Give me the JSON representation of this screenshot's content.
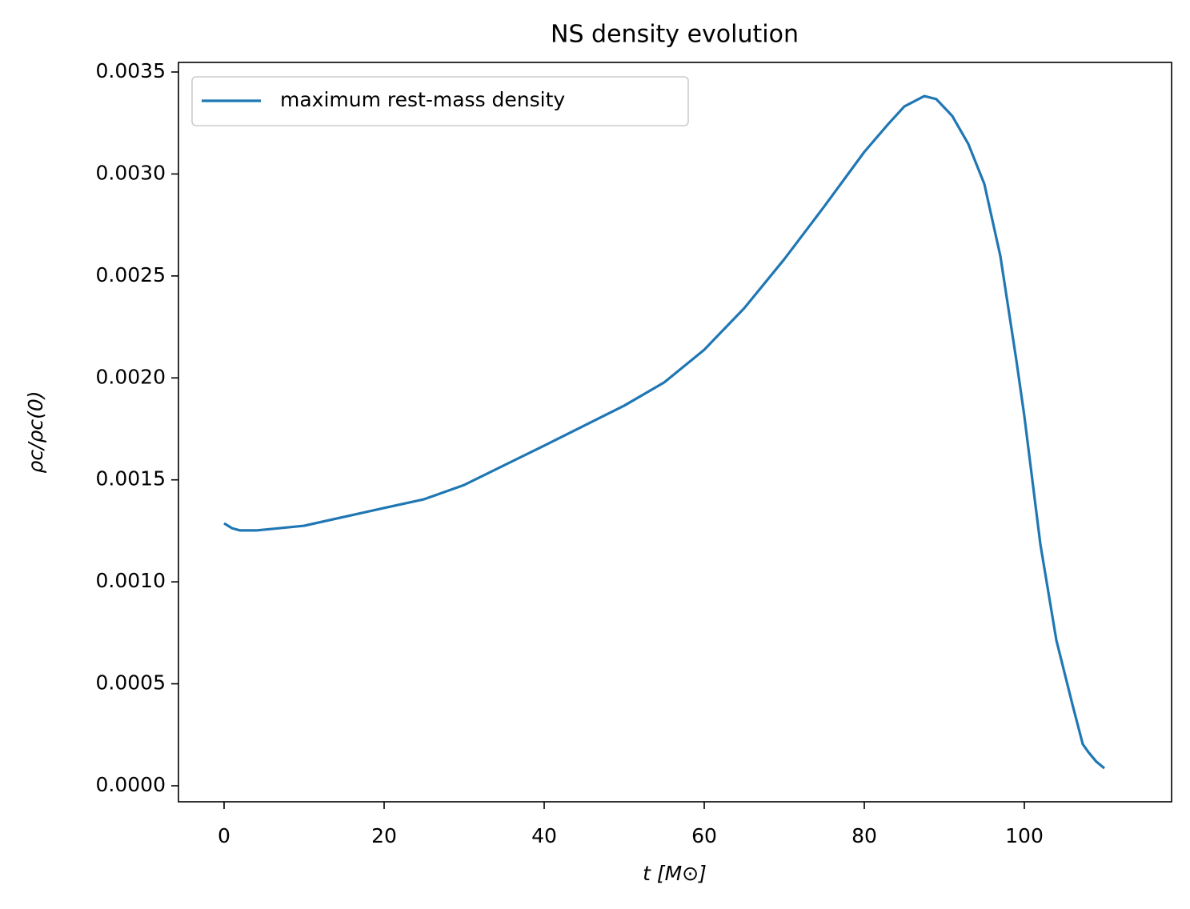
{
  "chart_data": {
    "type": "line",
    "title": "NS density evolution",
    "x_label": "t [M⊙]",
    "y_label": "ρc/ρc(0)",
    "x": [
      0,
      1,
      2,
      4,
      10,
      20,
      25,
      30,
      40,
      50,
      55,
      60,
      65,
      70,
      75,
      80,
      83,
      85,
      87.5,
      89,
      91,
      93,
      95,
      97,
      99,
      100,
      102,
      104,
      106,
      107.3,
      108,
      109,
      110
    ],
    "series": [
      {
        "name": "maximum rest-mass density",
        "color": "#1f77b4",
        "values": [
          0.001287,
          0.001263,
          0.001252,
          0.001252,
          0.001275,
          0.001362,
          0.001405,
          0.001475,
          0.001668,
          0.001864,
          0.001978,
          0.002138,
          0.002342,
          0.002582,
          0.002841,
          0.003108,
          0.003245,
          0.003331,
          0.003382,
          0.003367,
          0.003284,
          0.003147,
          0.002951,
          0.002598,
          0.002087,
          0.001813,
          0.001185,
          0.000714,
          0.0004,
          0.000204,
          0.000165,
          0.000118,
          8.6e-05
        ]
      }
    ],
    "xlim": [
      -5.7,
      118.4
    ],
    "ylim": [
      -7.85e-05,
      0.003547
    ],
    "xticks": [
      0,
      20,
      40,
      60,
      80,
      100
    ],
    "yticks": [
      {
        "value": 0,
        "label": "0.0000"
      },
      {
        "value": 0.0005,
        "label": "0.0005"
      },
      {
        "value": 0.001,
        "label": "0.0010"
      },
      {
        "value": 0.0015,
        "label": "0.0015"
      },
      {
        "value": 0.002,
        "label": "0.0020"
      },
      {
        "value": 0.0025,
        "label": "0.0025"
      },
      {
        "value": 0.003,
        "label": "0.0030"
      },
      {
        "value": 0.0035,
        "label": "0.0035"
      }
    ],
    "grid": false,
    "legend": "upper left"
  }
}
